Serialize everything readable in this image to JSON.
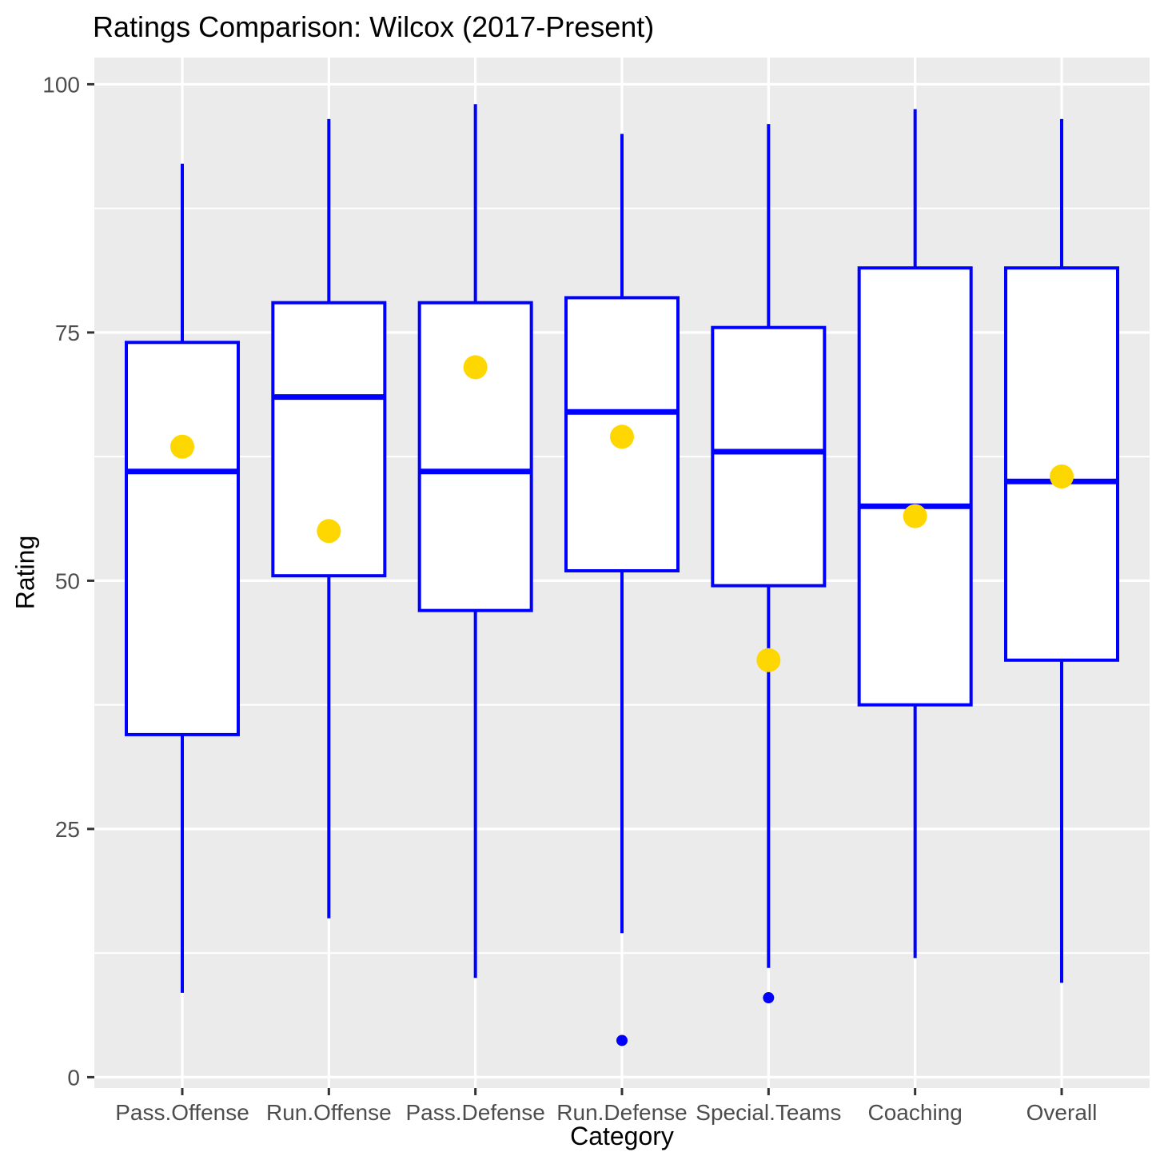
{
  "chart_data": {
    "type": "boxplot",
    "title": "Ratings Comparison: Wilcox (2017-Present)",
    "xlabel": "Category",
    "ylabel": "Rating",
    "ylim": [
      0,
      100
    ],
    "yticks": [
      "0",
      "25",
      "50",
      "75",
      "100"
    ],
    "ytick_values": [
      0,
      25,
      50,
      75,
      100
    ],
    "minor_gridlines": [
      12.5,
      37.5,
      62.5,
      87.5
    ],
    "grid": "on",
    "legend": "none",
    "categories": [
      "Pass.Offense",
      "Run.Offense",
      "Pass.Defense",
      "Run.Defense",
      "Special.Teams",
      "Coaching",
      "Overall"
    ],
    "series": [
      {
        "category": "Pass.Offense",
        "whisker_low": 8.5,
        "q1": 34.5,
        "median": 61,
        "q3": 74,
        "whisker_high": 92,
        "mean": 63.5,
        "outliers": []
      },
      {
        "category": "Run.Offense",
        "whisker_low": 16,
        "q1": 50.5,
        "median": 68.5,
        "q3": 78,
        "whisker_high": 96.5,
        "mean": 55,
        "outliers": []
      },
      {
        "category": "Pass.Defense",
        "whisker_low": 10,
        "q1": 47,
        "median": 61,
        "q3": 78,
        "whisker_high": 98,
        "mean": 71.5,
        "outliers": []
      },
      {
        "category": "Run.Defense",
        "whisker_low": 14.5,
        "q1": 51,
        "median": 67,
        "q3": 78.5,
        "whisker_high": 95,
        "mean": 64.5,
        "outliers": [
          3.7
        ]
      },
      {
        "category": "Special.Teams",
        "whisker_low": 11,
        "q1": 49.5,
        "median": 63,
        "q3": 75.5,
        "whisker_high": 96,
        "mean": 42,
        "outliers": [
          8
        ]
      },
      {
        "category": "Coaching",
        "whisker_low": 12,
        "q1": 37.5,
        "median": 57.5,
        "q3": 81.5,
        "whisker_high": 97.5,
        "mean": 56.5,
        "outliers": []
      },
      {
        "category": "Overall",
        "whisker_low": 9.5,
        "q1": 42,
        "median": 60,
        "q3": 81.5,
        "whisker_high": 96.5,
        "mean": 60.5,
        "outliers": []
      }
    ],
    "colors": {
      "box_stroke": "#0000FF",
      "box_fill": "#FFFFFF",
      "mean_point": "#FFD700",
      "outlier_point": "#0000FF",
      "panel_background": "#EBEBEB",
      "gridline": "#FFFFFF",
      "tick_label": "#4D4D4D",
      "tick_mark": "#333333",
      "title_text": "#000000"
    }
  }
}
